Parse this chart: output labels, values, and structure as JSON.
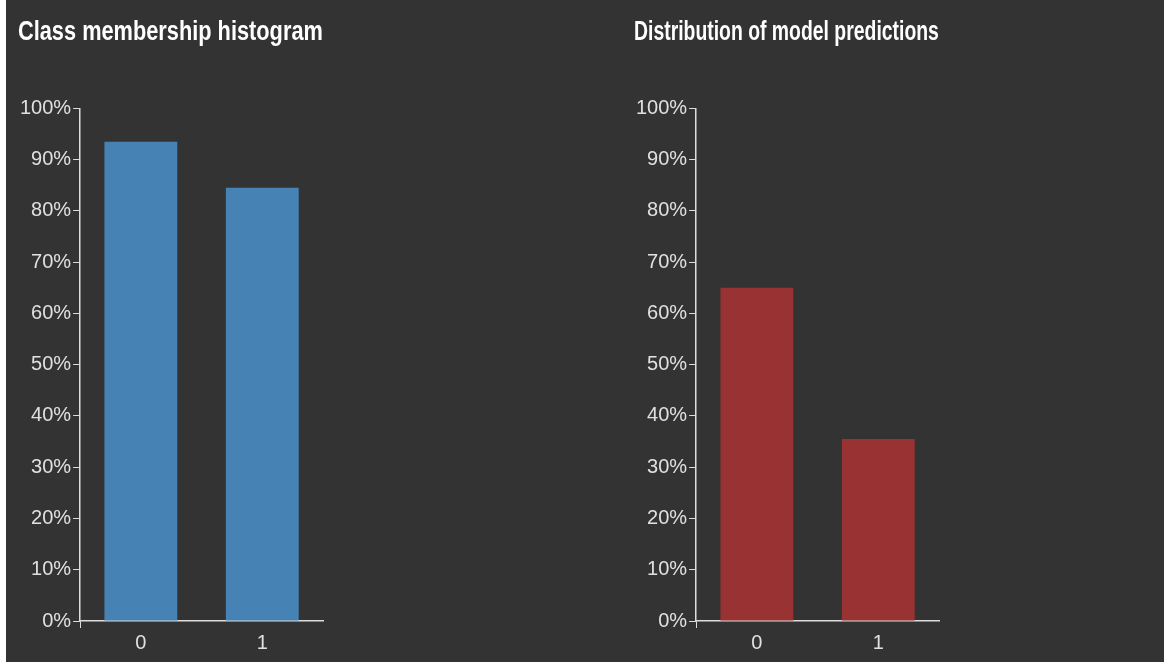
{
  "chart_data": [
    {
      "type": "bar",
      "title": "Class membership histogram",
      "categories": [
        "0",
        "1"
      ],
      "values": [
        93.5,
        84.5
      ],
      "color": "#4682b4",
      "ylim": [
        0,
        100
      ],
      "yticks": [
        {
          "value": 0,
          "label": "0%"
        },
        {
          "value": 10,
          "label": "10%"
        },
        {
          "value": 20,
          "label": "20%"
        },
        {
          "value": 30,
          "label": "30%"
        },
        {
          "value": 40,
          "label": "40%"
        },
        {
          "value": 50,
          "label": "50%"
        },
        {
          "value": 60,
          "label": "60%"
        },
        {
          "value": 70,
          "label": "70%"
        },
        {
          "value": 80,
          "label": "80%"
        },
        {
          "value": 90,
          "label": "90%"
        },
        {
          "value": 100,
          "label": "100%"
        }
      ]
    },
    {
      "type": "bar",
      "title": "Distribution of model predictions",
      "categories": [
        "0",
        "1"
      ],
      "values": [
        65,
        35.5
      ],
      "color": "#983233",
      "ylim": [
        0,
        100
      ],
      "yticks": [
        {
          "value": 0,
          "label": "0%"
        },
        {
          "value": 10,
          "label": "10%"
        },
        {
          "value": 20,
          "label": "20%"
        },
        {
          "value": 30,
          "label": "30%"
        },
        {
          "value": 40,
          "label": "40%"
        },
        {
          "value": 50,
          "label": "50%"
        },
        {
          "value": 60,
          "label": "60%"
        },
        {
          "value": 70,
          "label": "70%"
        },
        {
          "value": 80,
          "label": "80%"
        },
        {
          "value": 90,
          "label": "90%"
        },
        {
          "value": 100,
          "label": "100%"
        }
      ]
    }
  ]
}
